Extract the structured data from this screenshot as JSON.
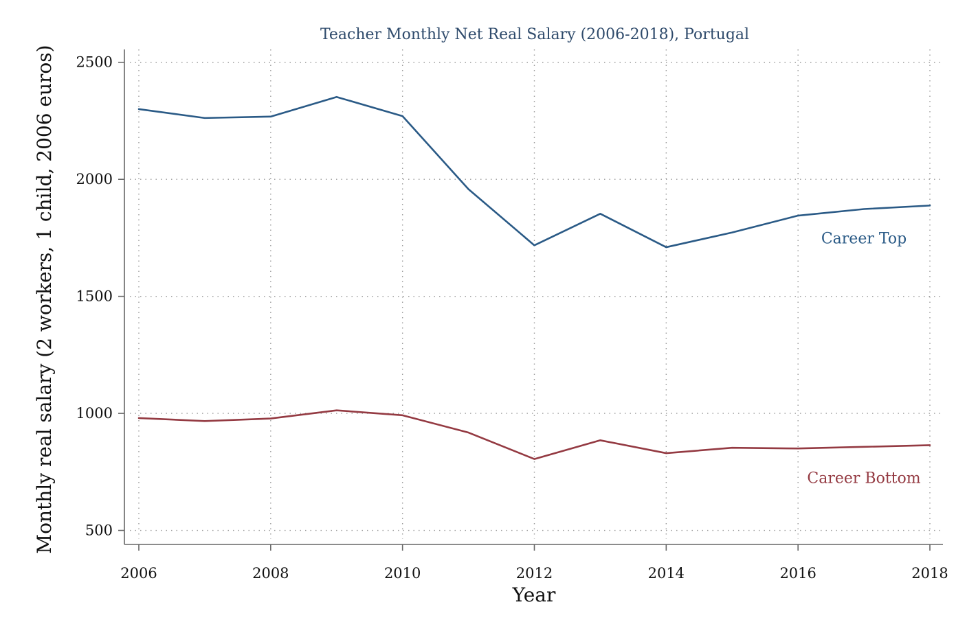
{
  "chart_data": {
    "type": "line",
    "title": "Teacher Monthly Net Real Salary (2006-2018), Portugal",
    "xlabel": "Year",
    "ylabel": "Monthly real salary (2 workers, 1 child, 2006 euros)",
    "x": [
      2006,
      2007,
      2008,
      2009,
      2010,
      2011,
      2012,
      2013,
      2014,
      2015,
      2016,
      2017,
      2018
    ],
    "xticks": [
      2006,
      2008,
      2010,
      2012,
      2014,
      2016,
      2018
    ],
    "yticks": [
      500,
      1000,
      1500,
      2000,
      2500
    ],
    "xlim": [
      2006,
      2018
    ],
    "ylim": [
      440,
      2555
    ],
    "grid": true,
    "legend": "inline labels at right",
    "series": [
      {
        "name": "Career Top",
        "color": "#2a5a86",
        "values": [
          2300,
          2262,
          2268,
          2352,
          2270,
          1958,
          1718,
          1853,
          1710,
          1773,
          1845,
          1873,
          1888
        ]
      },
      {
        "name": "Career Bottom",
        "color": "#943a42",
        "values": [
          980,
          967,
          978,
          1013,
          992,
          918,
          805,
          885,
          830,
          853,
          850,
          857,
          864
        ]
      }
    ]
  }
}
